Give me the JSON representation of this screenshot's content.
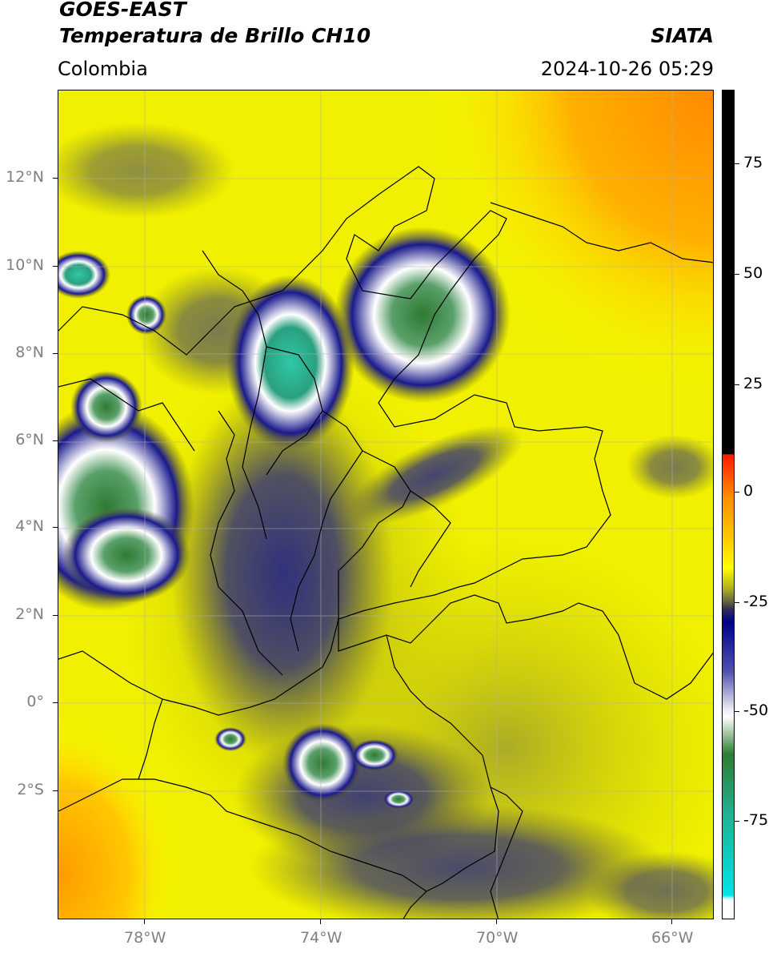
{
  "header": {
    "title_line1": "GOES-EAST",
    "title_line2": "Temperatura de Brillo CH10",
    "region": "Colombia",
    "agency": "SIATA",
    "datetime": "2024-10-26 05:29"
  },
  "map": {
    "lat_labels": [
      "12°N",
      "10°N",
      "8°N",
      "6°N",
      "4°N",
      "2°N",
      "0°",
      "2°S"
    ],
    "lon_labels": [
      "78°W",
      "74°W",
      "70°W",
      "66°W"
    ]
  },
  "colorbar": {
    "labels": [
      "75",
      "50",
      "25",
      "0",
      "-25",
      "-50",
      "-75"
    ],
    "colors": {
      "black": "#000000",
      "red": "#ff2a00",
      "orange": "#ff8c00",
      "yellow": "#ffff00",
      "olive": "#8a8a2a",
      "navy": "#00008b",
      "white": "#ffffff",
      "green": "#2e7d32",
      "teal": "#20c0a0",
      "cyan": "#00e5e5"
    }
  }
}
